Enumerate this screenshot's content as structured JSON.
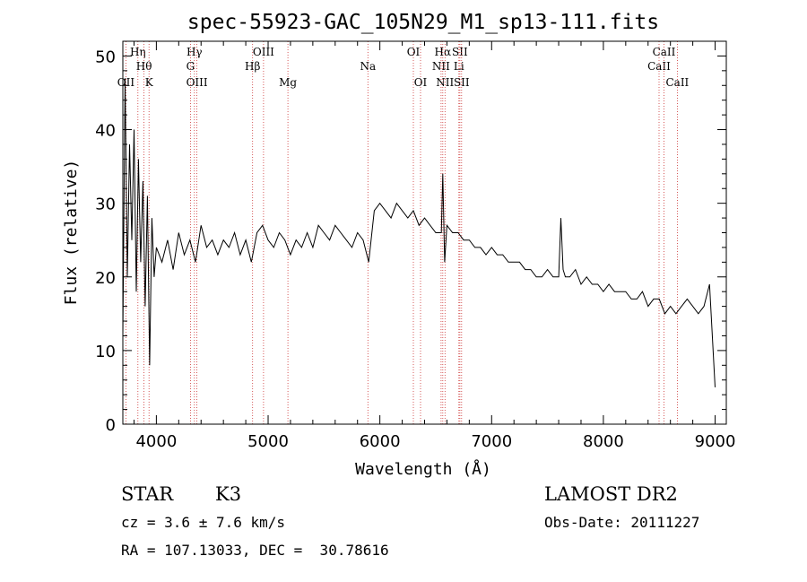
{
  "chart_data": {
    "type": "line",
    "title": "spec-55923-GAC_105N29_M1_sp13-111.fits",
    "xlabel": "Wavelength (Å)",
    "ylabel": "Flux (relative)",
    "xlim": [
      3700,
      9100
    ],
    "ylim": [
      0,
      52
    ],
    "xticks": [
      4000,
      5000,
      6000,
      7000,
      8000,
      9000
    ],
    "yticks": [
      0,
      10,
      20,
      30,
      40,
      50
    ],
    "grid": false,
    "series": [
      {
        "x": [
          3700,
          3720,
          3740,
          3760,
          3780,
          3800,
          3820,
          3840,
          3860,
          3880,
          3900,
          3920,
          3940,
          3960,
          3980,
          4000,
          4050,
          4100,
          4150,
          4200,
          4250,
          4300,
          4350,
          4400,
          4450,
          4500,
          4550,
          4600,
          4650,
          4700,
          4750,
          4800,
          4850,
          4900,
          4950,
          5000,
          5050,
          5100,
          5150,
          5200,
          5250,
          5300,
          5350,
          5400,
          5450,
          5500,
          5550,
          5600,
          5650,
          5700,
          5750,
          5800,
          5850,
          5900,
          5950,
          6000,
          6050,
          6100,
          6150,
          6200,
          6250,
          6300,
          6350,
          6400,
          6450,
          6500,
          6550,
          6563,
          6580,
          6600,
          6650,
          6700,
          6750,
          6800,
          6850,
          6900,
          6950,
          7000,
          7050,
          7100,
          7150,
          7200,
          7250,
          7300,
          7350,
          7400,
          7450,
          7500,
          7550,
          7600,
          7620,
          7640,
          7660,
          7700,
          7750,
          7800,
          7850,
          7900,
          7950,
          8000,
          8050,
          8100,
          8150,
          8200,
          8250,
          8300,
          8350,
          8400,
          8450,
          8500,
          8550,
          8600,
          8650,
          8700,
          8750,
          8800,
          8850,
          8900,
          8950,
          9000
        ],
        "y": [
          12,
          47,
          20,
          38,
          25,
          40,
          18,
          36,
          22,
          33,
          16,
          31,
          8,
          28,
          20,
          24,
          22,
          25,
          21,
          26,
          23,
          25,
          22,
          27,
          24,
          25,
          23,
          25,
          24,
          26,
          23,
          25,
          22,
          26,
          27,
          25,
          24,
          26,
          25,
          23,
          25,
          24,
          26,
          24,
          27,
          26,
          25,
          27,
          26,
          25,
          24,
          26,
          25,
          22,
          29,
          30,
          29,
          28,
          30,
          29,
          28,
          29,
          27,
          28,
          27,
          26,
          26,
          34,
          22,
          27,
          26,
          26,
          25,
          25,
          24,
          24,
          23,
          24,
          23,
          23,
          22,
          22,
          22,
          21,
          21,
          20,
          20,
          21,
          20,
          20,
          28,
          21,
          20,
          20,
          21,
          19,
          20,
          19,
          19,
          18,
          19,
          18,
          18,
          18,
          17,
          17,
          18,
          16,
          17,
          17,
          15,
          16,
          15,
          16,
          17,
          16,
          15,
          16,
          19,
          5
        ]
      }
    ],
    "lines": [
      {
        "wl": 3727,
        "label": "OII",
        "row": 3
      },
      {
        "wl": 3835,
        "label": "Hη",
        "row": 1
      },
      {
        "wl": 3889,
        "label": "Hθ",
        "row": 2
      },
      {
        "wl": 3934,
        "label": "K",
        "row": 3
      },
      {
        "wl": 4305,
        "label": "G",
        "row": 2
      },
      {
        "wl": 4340,
        "label": "Hγ",
        "row": 1
      },
      {
        "wl": 4363,
        "label": "OIII",
        "row": 3
      },
      {
        "wl": 4861,
        "label": "Hβ",
        "row": 2
      },
      {
        "wl": 4959,
        "label": "OIII",
        "row": 1
      },
      {
        "wl": 5177,
        "label": "Mg",
        "row": 3
      },
      {
        "wl": 5893,
        "label": "Na",
        "row": 2
      },
      {
        "wl": 6300,
        "label": "OI",
        "row": 1
      },
      {
        "wl": 6364,
        "label": "OI",
        "row": 3
      },
      {
        "wl": 6548,
        "label": "NII",
        "row": 2
      },
      {
        "wl": 6563,
        "label": "Hα",
        "row": 1
      },
      {
        "wl": 6583,
        "label": "NII",
        "row": 3
      },
      {
        "wl": 6707,
        "label": "Li",
        "row": 2
      },
      {
        "wl": 6716,
        "label": "SII",
        "row": 1
      },
      {
        "wl": 6731,
        "label": "SII",
        "row": 3
      },
      {
        "wl": 8498,
        "label": "CaII",
        "row": 2
      },
      {
        "wl": 8542,
        "label": "CaII",
        "row": 1
      },
      {
        "wl": 8662,
        "label": "CaII",
        "row": 3
      }
    ]
  },
  "info": {
    "class": "STAR",
    "subclass": "K3",
    "survey": "LAMOST DR2",
    "cz": "cz = 3.6 ± 7.6 km/s",
    "obs_date": "Obs-Date: 20111227",
    "coords": "RA = 107.13033, DEC =  30.78616"
  }
}
